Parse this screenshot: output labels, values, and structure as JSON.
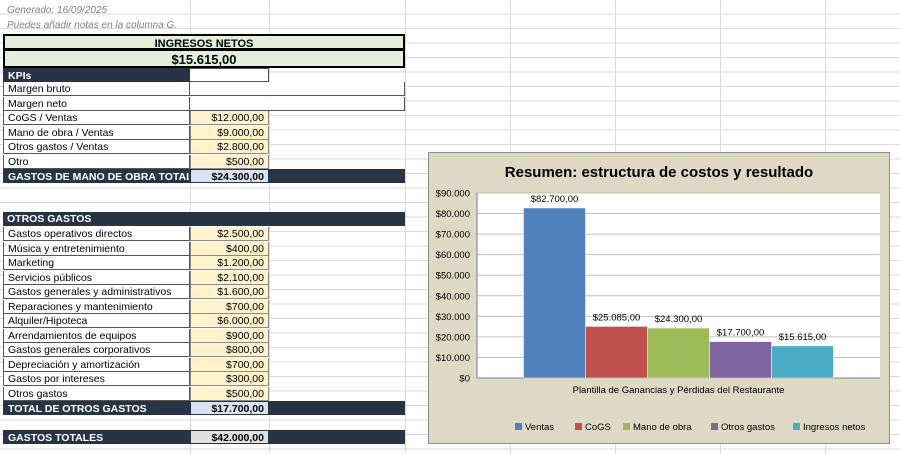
{
  "header": {
    "generated": "Generado: 16/09/2025",
    "note": "Puedes añadir notas en la columna G."
  },
  "net_income": {
    "title": "INGRESOS NETOS",
    "value": "$15.615,00"
  },
  "kpis": {
    "header": "KPIs",
    "rows": [
      {
        "label": "Margen bruto",
        "value": ""
      },
      {
        "label": "Margen neto",
        "value": ""
      },
      {
        "label": "CoGS / Ventas",
        "value": "$12.000,00"
      },
      {
        "label": "Mano de obra / Ventas",
        "value": "$9.000,00"
      },
      {
        "label": "Otros gastos / Ventas",
        "value": "$2.800,00"
      },
      {
        "label": "Otro",
        "value": "$500,00"
      }
    ],
    "total_label": "GASTOS DE MANO DE OBRA TOTALES",
    "total_value": "$24.300,00"
  },
  "other_expenses": {
    "header": "OTROS GASTOS",
    "rows": [
      {
        "label": "Gastos operativos directos",
        "value": "$2.500,00"
      },
      {
        "label": "Música y entretenimiento",
        "value": "$400,00"
      },
      {
        "label": "Marketing",
        "value": "$1.200,00"
      },
      {
        "label": "Servicios públicos",
        "value": "$2.100,00"
      },
      {
        "label": "Gastos generales y administrativos",
        "value": "$1.600,00"
      },
      {
        "label": "Reparaciones y mantenimiento",
        "value": "$700,00"
      },
      {
        "label": "Alquiler/Hipoteca",
        "value": "$6.000,00"
      },
      {
        "label": "Arrendamientos de equipos",
        "value": "$900,00"
      },
      {
        "label": "Gastos generales corporativos",
        "value": "$800,00"
      },
      {
        "label": "Depreciación y amortización",
        "value": "$700,00"
      },
      {
        "label": "Gastos por intereses",
        "value": "$300,00"
      },
      {
        "label": "Otros gastos",
        "value": "$500,00"
      }
    ],
    "total_label": "TOTAL DE OTROS GASTOS",
    "total_value": "$17.700,00"
  },
  "grand_total": {
    "label": "GASTOS TOTALES",
    "value": "$42.000,00"
  },
  "chart_data": {
    "type": "bar",
    "title": "Resumen: estructura de costos y resultado",
    "xlabel": "Plantilla de Ganancias y Pérdidas del Restaurante",
    "categories": [
      "Plantilla de Ganancias y Pérdidas del Restaurante"
    ],
    "ylim": [
      0,
      90000
    ],
    "yticks": [
      0,
      10000,
      20000,
      30000,
      40000,
      50000,
      60000,
      70000,
      80000,
      90000
    ],
    "ytick_labels": [
      "$0",
      "$10.000",
      "$20.000",
      "$30.000",
      "$40.000",
      "$50.000",
      "$60.000",
      "$70.000",
      "$80.000",
      "$90.000"
    ],
    "legend_position": "bottom",
    "grid": true,
    "series": [
      {
        "name": "Ventas",
        "values": [
          82700
        ],
        "label": "$82.700,00",
        "color": "#4f81bd"
      },
      {
        "name": "CoGS",
        "values": [
          25085
        ],
        "label": "$25.085,00",
        "color": "#c0504d"
      },
      {
        "name": "Mano de obra",
        "values": [
          24300
        ],
        "label": "$24.300,00",
        "color": "#9bbb59"
      },
      {
        "name": "Otros gastos",
        "values": [
          17700
        ],
        "label": "$17.700,00",
        "color": "#8064a2"
      },
      {
        "name": "Ingresos netos",
        "values": [
          15615
        ],
        "label": "$15.615,00",
        "color": "#4bacc6"
      }
    ]
  }
}
